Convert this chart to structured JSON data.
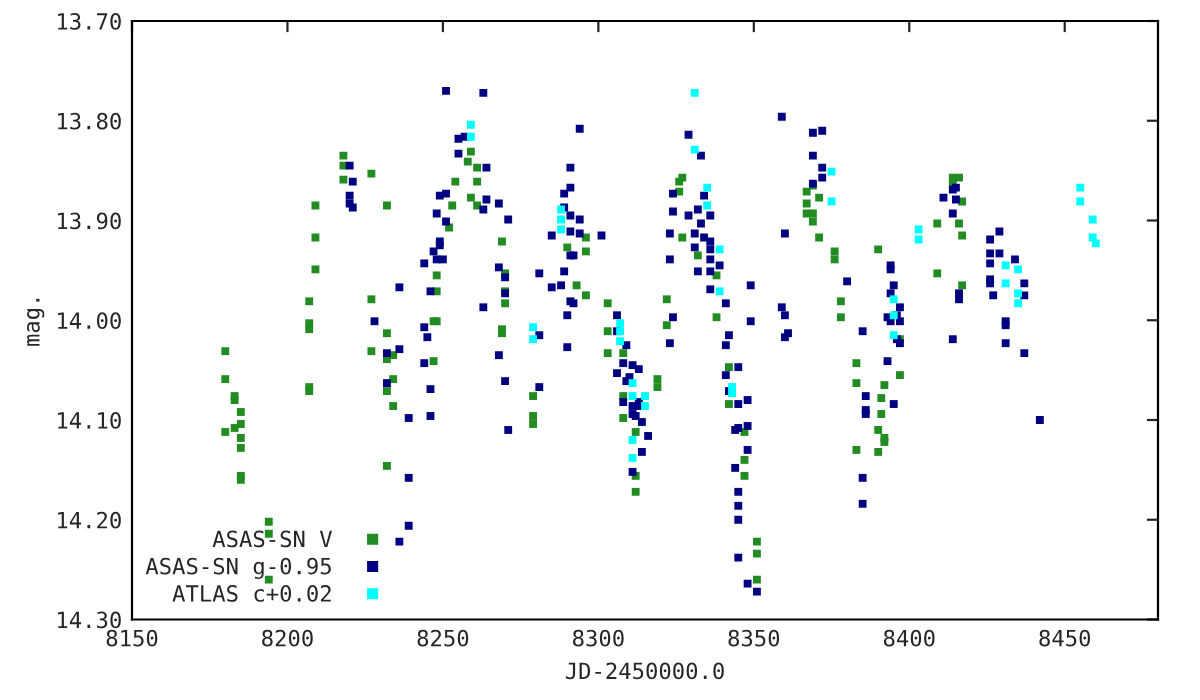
{
  "chart_data": {
    "type": "scatter",
    "xlabel": "JD-2450000.0",
    "ylabel": "mag.",
    "xlim": [
      8150,
      8480
    ],
    "xticks": [
      8150,
      8200,
      8250,
      8300,
      8350,
      8400,
      8450
    ],
    "ylim": [
      14.3,
      13.7
    ],
    "yticks": [
      {
        "value": 13.7,
        "label": "13.70"
      },
      {
        "value": 13.8,
        "label": "13.80"
      },
      {
        "value": 13.9,
        "label": "13.90"
      },
      {
        "value": 14.0,
        "label": "14.00"
      },
      {
        "value": 14.1,
        "label": "14.10"
      },
      {
        "value": 14.2,
        "label": "14.20"
      },
      {
        "value": 14.3,
        "label": "14.30"
      }
    ],
    "grid": false,
    "legend": "bottom left",
    "marker": "square",
    "series": [
      {
        "name": "ASAS-SN V",
        "color": "#228b22",
        "x": [
          8180,
          8180,
          8183,
          8183,
          8185,
          8185,
          8180,
          8183,
          8185,
          8185,
          8185,
          8185,
          8194,
          8194,
          8194,
          8209,
          8209,
          8209,
          8207,
          8207,
          8207,
          8207,
          8207,
          8218,
          8218,
          8218,
          8227,
          8232,
          8227,
          8227,
          8232,
          8232,
          8234,
          8234,
          8232,
          8234,
          8232,
          8248,
          8248,
          8247,
          8248,
          8247,
          8252,
          8254,
          8253,
          8259,
          8258,
          8261,
          8259,
          8261,
          8261,
          8269,
          8270,
          8270,
          8270,
          8269,
          8269,
          8290,
          8296,
          8296,
          8293,
          8296,
          8279,
          8279,
          8279,
          8303,
          8303,
          8303,
          8308,
          8308,
          8308,
          8312,
          8312,
          8312,
          8319,
          8319,
          8322,
          8322,
          8326,
          8327,
          8326,
          8327,
          8332,
          8338,
          8338,
          8342,
          8342,
          8347,
          8347,
          8347,
          8351,
          8351,
          8351,
          8367,
          8367,
          8367,
          8369,
          8369,
          8371,
          8371,
          8369,
          8376,
          8376,
          8378,
          8378,
          8390,
          8383,
          8383,
          8392,
          8391,
          8391,
          8390,
          8392,
          8392,
          8383,
          8390,
          8397,
          8397,
          8409,
          8409,
          8414,
          8416,
          8414,
          8417,
          8416,
          8417,
          8417
        ],
        "values": [
          14.031,
          14.059,
          14.076,
          14.08,
          14.092,
          14.104,
          14.112,
          14.108,
          14.118,
          14.128,
          14.156,
          14.16,
          14.202,
          14.214,
          14.26,
          13.885,
          13.917,
          13.949,
          13.981,
          14.003,
          14.009,
          14.067,
          14.071,
          13.835,
          13.845,
          13.859,
          13.853,
          13.885,
          13.979,
          14.031,
          14.013,
          14.039,
          14.035,
          14.059,
          14.071,
          14.086,
          14.146,
          13.955,
          13.971,
          14.001,
          14.001,
          14.041,
          13.907,
          13.861,
          13.885,
          13.831,
          13.841,
          13.861,
          13.877,
          13.847,
          13.885,
          13.921,
          13.953,
          13.971,
          13.983,
          14.009,
          14.013,
          13.927,
          13.917,
          13.931,
          13.965,
          13.975,
          14.076,
          14.096,
          14.104,
          13.983,
          14.011,
          14.033,
          14.033,
          14.076,
          14.098,
          14.112,
          14.156,
          14.172,
          14.059,
          14.067,
          13.979,
          14.005,
          13.861,
          13.857,
          13.871,
          13.917,
          13.935,
          13.955,
          13.997,
          14.047,
          14.084,
          14.112,
          14.14,
          14.156,
          14.222,
          14.234,
          14.26,
          13.871,
          13.883,
          13.893,
          13.893,
          13.901,
          13.877,
          13.917,
          13.865,
          13.931,
          13.939,
          13.981,
          13.997,
          13.929,
          14.043,
          14.063,
          14.065,
          14.078,
          14.094,
          14.11,
          14.118,
          14.122,
          14.13,
          14.132,
          14.055,
          14.019,
          13.953,
          13.903,
          13.857,
          13.857,
          13.863,
          13.881,
          13.903,
          13.915,
          13.965
        ]
      },
      {
        "name": "ASAS-SN g-0.95",
        "color": "#000080",
        "x": [
          8251,
          8255,
          8257,
          8255,
          8220,
          8221,
          8220,
          8220,
          8221,
          8251,
          8249,
          8251,
          8248,
          8247,
          8249,
          8249,
          8250,
          8248,
          8244,
          8246,
          8236,
          8228,
          8244,
          8245,
          8236,
          8232,
          8232,
          8244,
          8246,
          8239,
          8246,
          8239,
          8239,
          8236,
          8263,
          8264,
          8264,
          8268,
          8263,
          8271,
          8268,
          8270,
          8270,
          8263,
          8268,
          8270,
          8281,
          8271,
          8294,
          8291,
          8291,
          8289,
          8289,
          8291,
          8294,
          8285,
          8291,
          8294,
          8301,
          8291,
          8292,
          8289,
          8281,
          8288,
          8285,
          8291,
          8292,
          8290,
          8281,
          8290,
          8329,
          8333,
          8324,
          8334,
          8332,
          8329,
          8336,
          8324,
          8333,
          8331,
          8323,
          8334,
          8336,
          8331,
          8336,
          8323,
          8336,
          8332,
          8339,
          8336,
          8336,
          8341,
          8349,
          8349,
          8342,
          8341,
          8324,
          8323,
          8306,
          8306,
          8309,
          8308,
          8311,
          8313,
          8306,
          8310,
          8309,
          8308,
          8311,
          8313,
          8313,
          8311,
          8312,
          8314,
          8316,
          8314,
          8311,
          8341,
          8345,
          8342,
          8345,
          8348,
          8344,
          8345,
          8348,
          8348,
          8344,
          8345,
          8345,
          8345,
          8345,
          8348,
          8351,
          8359,
          8369,
          8372,
          8369,
          8372,
          8372,
          8369,
          8360,
          8359,
          8360,
          8361,
          8360,
          8380,
          8394,
          8394,
          8395,
          8394,
          8397,
          8393,
          8394,
          8396,
          8397,
          8396,
          8397,
          8385,
          8393,
          8386,
          8386,
          8386,
          8395,
          8385,
          8385,
          8411,
          8414,
          8415,
          8415,
          8414,
          8414,
          8416,
          8416,
          8426,
          8429,
          8426,
          8429,
          8434,
          8426,
          8426,
          8426,
          8427,
          8437,
          8437,
          8431,
          8431,
          8431,
          8437,
          8442
        ],
        "values": [
          13.77,
          13.818,
          13.816,
          13.833,
          13.845,
          13.861,
          13.875,
          13.883,
          13.887,
          13.873,
          13.875,
          13.901,
          13.893,
          13.931,
          13.921,
          13.925,
          13.939,
          13.939,
          13.943,
          13.971,
          13.967,
          14.001,
          14.007,
          14.017,
          14.029,
          14.033,
          14.063,
          14.043,
          14.069,
          14.098,
          14.096,
          14.158,
          14.206,
          14.222,
          13.772,
          13.847,
          13.879,
          13.883,
          13.889,
          13.899,
          13.947,
          13.957,
          13.973,
          13.987,
          14.035,
          14.061,
          14.067,
          14.11,
          13.808,
          13.847,
          13.867,
          13.873,
          13.887,
          13.895,
          13.899,
          13.915,
          13.911,
          13.913,
          13.915,
          13.935,
          13.935,
          13.951,
          13.953,
          13.965,
          13.967,
          13.981,
          13.983,
          13.995,
          14.015,
          14.027,
          13.814,
          13.835,
          13.873,
          13.875,
          13.889,
          13.895,
          13.895,
          13.891,
          13.903,
          13.913,
          13.913,
          13.917,
          13.921,
          13.927,
          13.929,
          13.939,
          13.939,
          13.951,
          13.945,
          13.951,
          13.969,
          13.983,
          13.965,
          14.001,
          14.015,
          14.025,
          13.997,
          14.023,
          13.995,
          14.011,
          14.025,
          14.043,
          14.045,
          14.049,
          14.053,
          14.057,
          14.061,
          14.082,
          14.086,
          14.082,
          14.086,
          14.094,
          14.096,
          14.102,
          14.116,
          14.132,
          14.152,
          14.055,
          14.047,
          14.071,
          14.084,
          14.08,
          14.11,
          14.108,
          14.106,
          14.13,
          14.148,
          14.172,
          14.186,
          14.2,
          14.238,
          14.264,
          14.272,
          13.796,
          13.812,
          13.81,
          13.835,
          13.847,
          13.857,
          13.863,
          13.913,
          13.987,
          13.995,
          14.013,
          14.017,
          13.961,
          13.945,
          13.949,
          13.965,
          13.973,
          13.987,
          13.997,
          14.001,
          13.995,
          14.001,
          14.019,
          14.023,
          14.011,
          14.041,
          14.076,
          14.09,
          14.094,
          14.084,
          14.158,
          14.184,
          13.877,
          13.869,
          13.867,
          13.879,
          13.893,
          14.019,
          13.973,
          13.979,
          13.919,
          13.911,
          13.933,
          13.933,
          13.939,
          13.943,
          13.959,
          13.963,
          13.975,
          13.963,
          13.975,
          14.001,
          14.005,
          14.023,
          14.033,
          14.1
        ]
      },
      {
        "name": "ATLAS c+0.02",
        "color": "#00ffff",
        "x": [
          8259,
          8259,
          8288,
          8288,
          8288,
          8279,
          8279,
          8307,
          8307,
          8307,
          8311,
          8311,
          8315,
          8315,
          8311,
          8311,
          8331,
          8331,
          8335,
          8335,
          8339,
          8339,
          8343,
          8343,
          8375,
          8375,
          8395,
          8395,
          8395,
          8403,
          8403,
          8431,
          8431,
          8435,
          8435,
          8435,
          8455,
          8455,
          8459,
          8459,
          8460
        ],
        "values": [
          13.804,
          13.816,
          13.889,
          13.899,
          13.909,
          14.007,
          14.019,
          14.003,
          14.011,
          14.021,
          14.063,
          14.076,
          14.076,
          14.086,
          14.12,
          14.138,
          13.772,
          13.829,
          13.867,
          13.885,
          13.929,
          13.971,
          14.067,
          14.073,
          13.851,
          13.881,
          13.979,
          13.995,
          14.015,
          13.909,
          13.919,
          13.945,
          13.963,
          13.949,
          13.983,
          13.973,
          13.867,
          13.881,
          13.899,
          13.917,
          13.923
        ]
      }
    ]
  }
}
